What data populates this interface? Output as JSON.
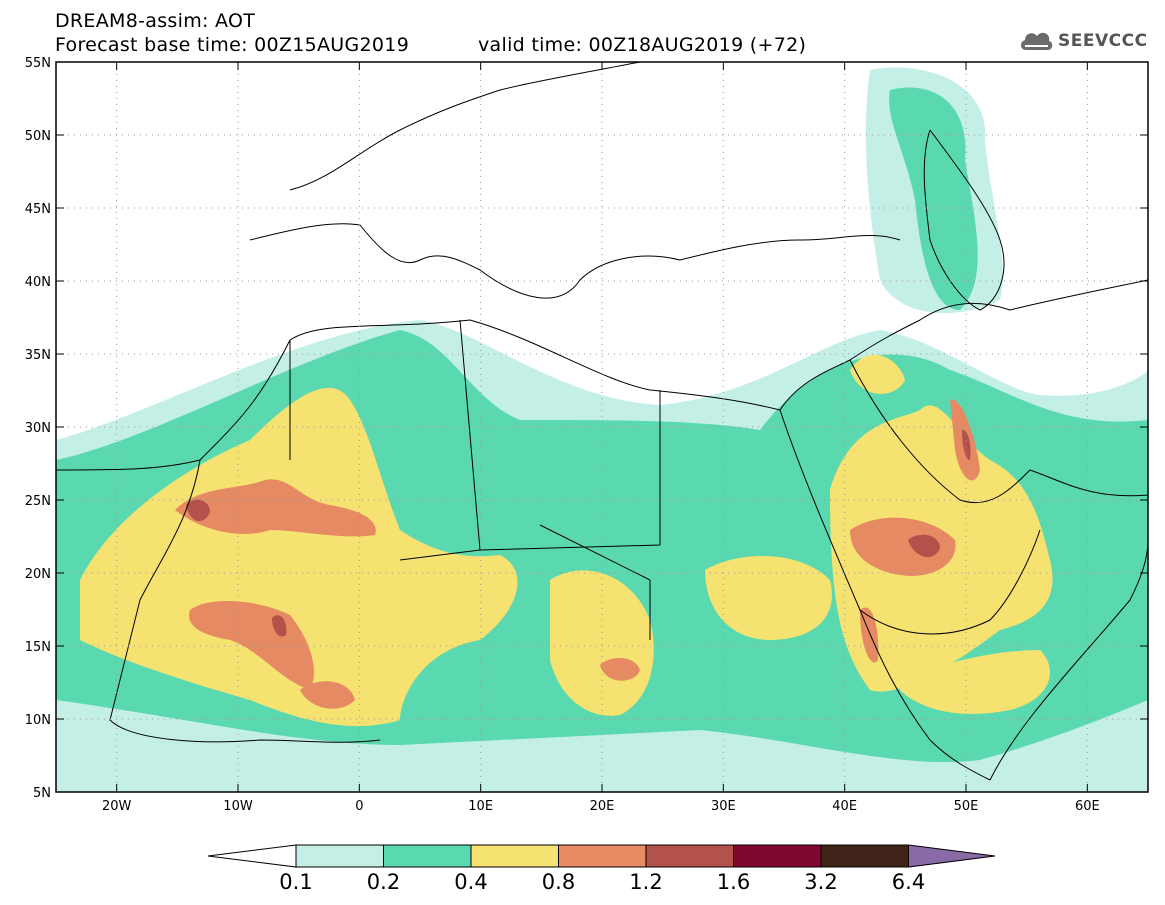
{
  "header": {
    "model_line": "DREAM8-assim: AOT",
    "base_time": "Forecast base time: 00Z15AUG2019",
    "valid_time": "valid time: 00Z18AUG2019 (+72)"
  },
  "logo": {
    "text": "SEEVCCC",
    "icon": "cloud-icon"
  },
  "map": {
    "lon_range": [
      -25,
      65
    ],
    "lat_range": [
      5,
      55
    ],
    "lon_labels": [
      "20W",
      "10W",
      "0",
      "10E",
      "20E",
      "30E",
      "40E",
      "50E",
      "60E"
    ],
    "lat_labels": [
      "5N",
      "10N",
      "15N",
      "20N",
      "25N",
      "30N",
      "35N",
      "40N",
      "45N",
      "50N",
      "55N"
    ]
  },
  "colorbar": {
    "labels": [
      "0.1",
      "0.2",
      "0.4",
      "0.8",
      "1.2",
      "1.6",
      "3.2",
      "6.4"
    ],
    "colors": [
      "#c4efe6",
      "#5ad9b1",
      "#f6e270",
      "#e58a62",
      "#b2524a",
      "#7e0830",
      "#3f2318",
      "#8a6aa6"
    ]
  }
}
